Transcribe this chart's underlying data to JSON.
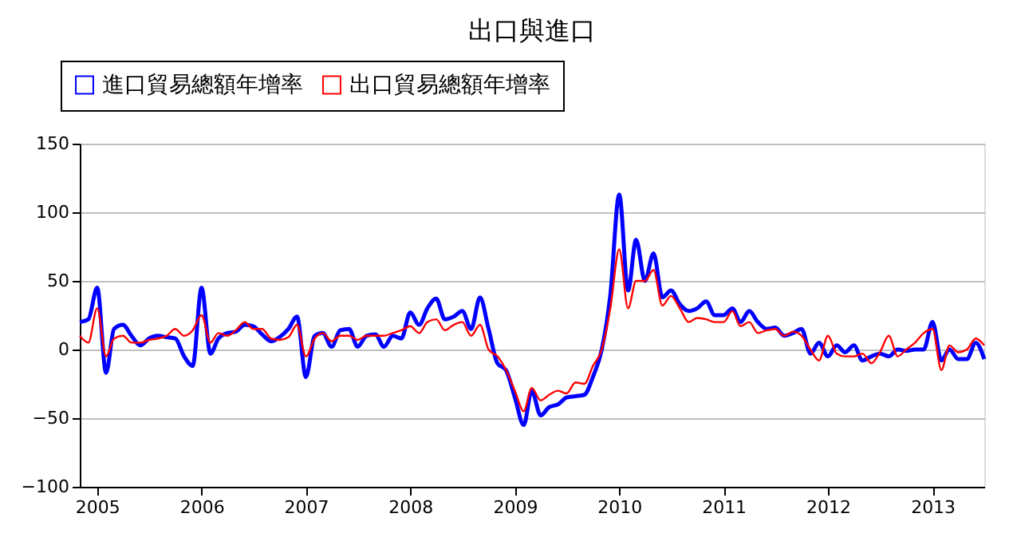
{
  "chart_data": {
    "type": "line",
    "title": "出口與進口",
    "x": [
      "2004-11",
      "2004-12",
      "2005-01",
      "2005-02",
      "2005-03",
      "2005-04",
      "2005-05",
      "2005-06",
      "2005-07",
      "2005-08",
      "2005-09",
      "2005-10",
      "2005-11",
      "2005-12",
      "2006-01",
      "2006-02",
      "2006-03",
      "2006-04",
      "2006-05",
      "2006-06",
      "2006-07",
      "2006-08",
      "2006-09",
      "2006-10",
      "2006-11",
      "2006-12",
      "2007-01",
      "2007-02",
      "2007-03",
      "2007-04",
      "2007-05",
      "2007-06",
      "2007-07",
      "2007-08",
      "2007-09",
      "2007-10",
      "2007-11",
      "2007-12",
      "2008-01",
      "2008-02",
      "2008-03",
      "2008-04",
      "2008-05",
      "2008-06",
      "2008-07",
      "2008-08",
      "2008-09",
      "2008-10",
      "2008-11",
      "2008-12",
      "2009-01",
      "2009-02",
      "2009-03",
      "2009-04",
      "2009-05",
      "2009-06",
      "2009-07",
      "2009-08",
      "2009-09",
      "2009-10",
      "2009-11",
      "2009-12",
      "2010-01",
      "2010-02",
      "2010-03",
      "2010-04",
      "2010-05",
      "2010-06",
      "2010-07",
      "2010-08",
      "2010-09",
      "2010-10",
      "2010-11",
      "2010-12",
      "2011-01",
      "2011-02",
      "2011-03",
      "2011-04",
      "2011-05",
      "2011-06",
      "2011-07",
      "2011-08",
      "2011-09",
      "2011-10",
      "2011-11",
      "2011-12",
      "2012-01",
      "2012-02",
      "2012-03",
      "2012-04",
      "2012-05",
      "2012-06",
      "2012-07",
      "2012-08",
      "2012-09",
      "2012-10",
      "2012-11",
      "2012-12",
      "2013-01",
      "2013-02",
      "2013-03",
      "2013-04",
      "2013-05",
      "2013-06",
      "2013-07"
    ],
    "series": [
      {
        "name": "進口貿易總額年增率",
        "color": "#0000ff",
        "values": [
          20,
          22,
          45,
          -17,
          15,
          18,
          10,
          3,
          8,
          10,
          9,
          8,
          -5,
          -12,
          45,
          -3,
          8,
          12,
          13,
          18,
          17,
          11,
          6,
          9,
          15,
          24,
          -20,
          10,
          12,
          2,
          14,
          15,
          2,
          10,
          11,
          2,
          10,
          8,
          27,
          18,
          30,
          37,
          22,
          24,
          28,
          15,
          38,
          15,
          -10,
          -15,
          -35,
          -55,
          -30,
          -48,
          -42,
          -40,
          -35,
          -34,
          -33,
          -20,
          0,
          40,
          113,
          43,
          80,
          50,
          70,
          38,
          43,
          33,
          28,
          30,
          35,
          25,
          25,
          30,
          20,
          28,
          20,
          15,
          16,
          10,
          12,
          15,
          -3,
          5,
          -5,
          3,
          -2,
          3,
          -8,
          -5,
          -3,
          -5,
          0,
          -1,
          0,
          0,
          20,
          -8,
          0,
          -7,
          -7,
          5,
          -7
        ]
      },
      {
        "name": "出口貿易總額年增率",
        "color": "#ff0000",
        "values": [
          10,
          5,
          30,
          -5,
          8,
          10,
          5,
          5,
          7,
          8,
          10,
          15,
          10,
          14,
          25,
          5,
          12,
          10,
          14,
          20,
          15,
          15,
          8,
          7,
          9,
          18,
          -5,
          8,
          12,
          6,
          10,
          10,
          7,
          10,
          10,
          10,
          12,
          14,
          17,
          12,
          20,
          22,
          14,
          18,
          20,
          10,
          18,
          0,
          -5,
          -15,
          -30,
          -45,
          -28,
          -37,
          -33,
          -30,
          -32,
          -24,
          -25,
          -12,
          0,
          30,
          73,
          30,
          50,
          50,
          58,
          32,
          39,
          30,
          20,
          23,
          22,
          20,
          20,
          28,
          17,
          20,
          12,
          14,
          15,
          10,
          13,
          10,
          0,
          -8,
          10,
          -3,
          -5,
          -5,
          -3,
          -10,
          -2,
          10,
          -5,
          0,
          5,
          12,
          15,
          -15,
          3,
          -2,
          0,
          8,
          3
        ]
      }
    ],
    "xlim": [
      "2004-11",
      "2013-07"
    ],
    "xticks": [
      {
        "value": "2005-01",
        "label": "2005"
      },
      {
        "value": "2006-01",
        "label": "2006"
      },
      {
        "value": "2007-01",
        "label": "2007"
      },
      {
        "value": "2008-01",
        "label": "2008"
      },
      {
        "value": "2009-01",
        "label": "2009"
      },
      {
        "value": "2010-01",
        "label": "2010"
      },
      {
        "value": "2011-01",
        "label": "2011"
      },
      {
        "value": "2012-01",
        "label": "2012"
      },
      {
        "value": "2013-01",
        "label": "2013"
      }
    ],
    "ylim": [
      -100,
      150
    ],
    "yticks": [
      -100,
      -50,
      0,
      50,
      100,
      150
    ],
    "grid": "y",
    "legend": "top left",
    "marker": "none",
    "line_style": "solid"
  }
}
